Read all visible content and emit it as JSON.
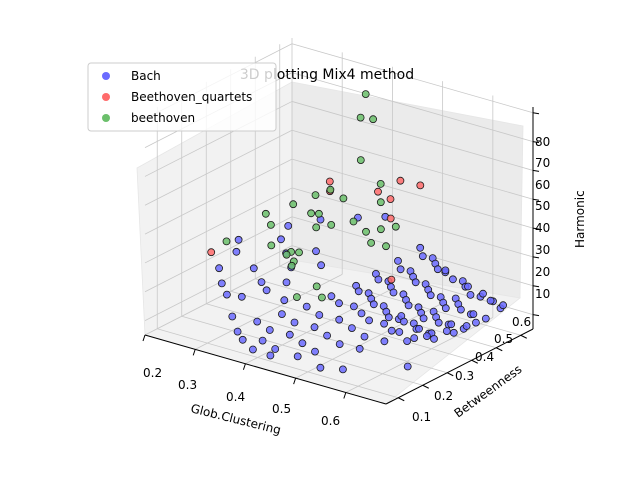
{
  "chart_data": {
    "type": "scatter",
    "title": "3D plotting Mix4 method",
    "xlabel": "Glob.Clustering",
    "ylabel": "Betweenness",
    "zlabel": "Harmonic",
    "xlim": [
      0.2,
      0.68
    ],
    "ylim": [
      0.05,
      0.65
    ],
    "zlim": [
      5,
      82
    ],
    "xticks": [
      "0.2",
      "0.3",
      "0.4",
      "0.5",
      "0.6"
    ],
    "yticks": [
      "0.1",
      "0.2",
      "0.3",
      "0.4",
      "0.5",
      "0.6"
    ],
    "zticks": [
      "10",
      "20",
      "30",
      "40",
      "50",
      "60",
      "70",
      "80"
    ],
    "grid": true,
    "legend_position": "top-left",
    "series": [
      {
        "name": "Bach",
        "color": "#6b6bff",
        "points": [
          [
            0.47,
            0.62,
            24
          ],
          [
            0.48,
            0.61,
            22
          ],
          [
            0.49,
            0.63,
            21
          ],
          [
            0.5,
            0.62,
            20
          ],
          [
            0.51,
            0.61,
            19
          ],
          [
            0.52,
            0.62,
            18
          ],
          [
            0.53,
            0.6,
            20
          ],
          [
            0.54,
            0.61,
            17
          ],
          [
            0.55,
            0.63,
            16
          ],
          [
            0.56,
            0.62,
            15
          ],
          [
            0.57,
            0.61,
            16
          ],
          [
            0.58,
            0.6,
            14
          ],
          [
            0.59,
            0.62,
            13
          ],
          [
            0.6,
            0.61,
            15
          ],
          [
            0.61,
            0.63,
            12
          ],
          [
            0.62,
            0.6,
            14
          ],
          [
            0.63,
            0.62,
            11
          ],
          [
            0.64,
            0.61,
            13
          ],
          [
            0.46,
            0.55,
            22
          ],
          [
            0.47,
            0.54,
            20
          ],
          [
            0.48,
            0.56,
            19
          ],
          [
            0.49,
            0.55,
            18
          ],
          [
            0.5,
            0.54,
            17
          ],
          [
            0.51,
            0.56,
            16
          ],
          [
            0.52,
            0.55,
            15
          ],
          [
            0.53,
            0.54,
            14
          ],
          [
            0.54,
            0.56,
            13
          ],
          [
            0.55,
            0.55,
            12
          ],
          [
            0.56,
            0.54,
            11
          ],
          [
            0.57,
            0.56,
            14
          ],
          [
            0.58,
            0.55,
            13
          ],
          [
            0.59,
            0.54,
            12
          ],
          [
            0.6,
            0.56,
            10
          ],
          [
            0.61,
            0.55,
            11
          ],
          [
            0.62,
            0.54,
            9
          ],
          [
            0.63,
            0.56,
            10
          ],
          [
            0.45,
            0.48,
            20
          ],
          [
            0.46,
            0.47,
            19
          ],
          [
            0.47,
            0.49,
            18
          ],
          [
            0.48,
            0.48,
            17
          ],
          [
            0.49,
            0.47,
            16
          ],
          [
            0.5,
            0.49,
            15
          ],
          [
            0.51,
            0.48,
            14
          ],
          [
            0.52,
            0.47,
            13
          ],
          [
            0.53,
            0.49,
            12
          ],
          [
            0.54,
            0.48,
            11
          ],
          [
            0.55,
            0.47,
            10
          ],
          [
            0.56,
            0.49,
            12
          ],
          [
            0.57,
            0.48,
            11
          ],
          [
            0.58,
            0.47,
            10
          ],
          [
            0.59,
            0.49,
            9
          ],
          [
            0.6,
            0.48,
            10
          ],
          [
            0.61,
            0.47,
            8
          ],
          [
            0.62,
            0.49,
            9
          ],
          [
            0.44,
            0.42,
            18
          ],
          [
            0.45,
            0.41,
            17
          ],
          [
            0.46,
            0.43,
            16
          ],
          [
            0.47,
            0.42,
            15
          ],
          [
            0.48,
            0.41,
            14
          ],
          [
            0.49,
            0.43,
            13
          ],
          [
            0.5,
            0.42,
            12
          ],
          [
            0.51,
            0.41,
            11
          ],
          [
            0.52,
            0.43,
            10
          ],
          [
            0.53,
            0.42,
            12
          ],
          [
            0.54,
            0.41,
            11
          ],
          [
            0.55,
            0.43,
            10
          ],
          [
            0.56,
            0.42,
            9
          ],
          [
            0.57,
            0.41,
            10
          ],
          [
            0.58,
            0.43,
            8
          ],
          [
            0.59,
            0.42,
            9
          ],
          [
            0.6,
            0.41,
            8
          ],
          [
            0.42,
            0.36,
            16
          ],
          [
            0.44,
            0.35,
            15
          ],
          [
            0.46,
            0.37,
            14
          ],
          [
            0.48,
            0.36,
            13
          ],
          [
            0.5,
            0.35,
            12
          ],
          [
            0.52,
            0.37,
            11
          ],
          [
            0.54,
            0.36,
            10
          ],
          [
            0.56,
            0.35,
            11
          ],
          [
            0.58,
            0.37,
            9
          ],
          [
            0.4,
            0.3,
            14
          ],
          [
            0.43,
            0.29,
            13
          ],
          [
            0.46,
            0.31,
            12
          ],
          [
            0.49,
            0.3,
            11
          ],
          [
            0.52,
            0.29,
            10
          ],
          [
            0.55,
            0.31,
            9
          ],
          [
            0.38,
            0.24,
            13
          ],
          [
            0.41,
            0.23,
            12
          ],
          [
            0.44,
            0.25,
            11
          ],
          [
            0.47,
            0.24,
            10
          ],
          [
            0.5,
            0.23,
            9
          ],
          [
            0.53,
            0.25,
            8
          ],
          [
            0.36,
            0.18,
            12
          ],
          [
            0.39,
            0.17,
            11
          ],
          [
            0.42,
            0.19,
            10
          ],
          [
            0.45,
            0.18,
            9
          ],
          [
            0.48,
            0.17,
            8
          ],
          [
            0.4,
            0.12,
            10
          ],
          [
            0.43,
            0.11,
            9
          ],
          [
            0.47,
            0.12,
            8
          ],
          [
            0.52,
            0.11,
            7
          ],
          [
            0.56,
            0.12,
            8
          ],
          [
            0.3,
            0.4,
            28
          ],
          [
            0.32,
            0.38,
            25
          ],
          [
            0.34,
            0.36,
            22
          ],
          [
            0.36,
            0.42,
            26
          ],
          [
            0.38,
            0.4,
            23
          ],
          [
            0.28,
            0.33,
            20
          ],
          [
            0.31,
            0.3,
            18
          ],
          [
            0.33,
            0.28,
            17
          ],
          [
            0.35,
            0.32,
            19
          ],
          [
            0.37,
            0.27,
            16
          ],
          [
            0.25,
            0.25,
            22
          ],
          [
            0.27,
            0.22,
            19
          ],
          [
            0.29,
            0.2,
            17
          ],
          [
            0.26,
            0.3,
            26
          ],
          [
            0.3,
            0.24,
            15
          ],
          [
            0.33,
            0.14,
            14
          ],
          [
            0.36,
            0.1,
            12
          ],
          [
            0.38,
            0.08,
            11
          ],
          [
            0.41,
            0.06,
            10
          ],
          [
            0.44,
            0.07,
            9
          ],
          [
            0.24,
            0.35,
            27
          ],
          [
            0.29,
            0.45,
            30
          ],
          [
            0.33,
            0.5,
            32
          ],
          [
            0.38,
            0.55,
            33
          ],
          [
            0.42,
            0.58,
            34
          ],
          [
            0.6,
            0.3,
            12
          ],
          [
            0.62,
            0.34,
            13
          ],
          [
            0.64,
            0.38,
            14
          ],
          [
            0.66,
            0.42,
            15
          ],
          [
            0.65,
            0.2,
            10
          ]
        ]
      },
      {
        "name": "Beethoven_quartets",
        "color": "#ff6b6b",
        "points": [
          [
            0.2,
            0.32,
            22
          ],
          [
            0.29,
            0.62,
            38
          ],
          [
            0.3,
            0.6,
            36
          ],
          [
            0.42,
            0.55,
            44
          ],
          [
            0.44,
            0.56,
            42
          ],
          [
            0.46,
            0.52,
            38
          ],
          [
            0.52,
            0.4,
            25
          ],
          [
            0.48,
            0.6,
            47
          ],
          [
            0.45,
            0.58,
            48
          ]
        ]
      },
      {
        "name": "beethoven",
        "color": "#6bbf6b",
        "points": [
          [
            0.42,
            0.5,
            80
          ],
          [
            0.4,
            0.52,
            70
          ],
          [
            0.42,
            0.53,
            70
          ],
          [
            0.42,
            0.48,
            58
          ],
          [
            0.4,
            0.35,
            44
          ],
          [
            0.4,
            0.45,
            45
          ],
          [
            0.44,
            0.52,
            49
          ],
          [
            0.45,
            0.5,
            44
          ],
          [
            0.4,
            0.4,
            38
          ],
          [
            0.42,
            0.45,
            38
          ],
          [
            0.38,
            0.38,
            37
          ],
          [
            0.36,
            0.4,
            40
          ],
          [
            0.3,
            0.45,
            38
          ],
          [
            0.32,
            0.5,
            40
          ],
          [
            0.34,
            0.52,
            42
          ],
          [
            0.44,
            0.46,
            35
          ],
          [
            0.46,
            0.48,
            36
          ],
          [
            0.48,
            0.5,
            37
          ],
          [
            0.28,
            0.4,
            32
          ],
          [
            0.26,
            0.42,
            34
          ],
          [
            0.36,
            0.3,
            30
          ],
          [
            0.38,
            0.28,
            28
          ],
          [
            0.42,
            0.3,
            22
          ],
          [
            0.44,
            0.28,
            20
          ],
          [
            0.4,
            0.26,
            19
          ],
          [
            0.33,
            0.38,
            26
          ],
          [
            0.35,
            0.35,
            25
          ],
          [
            0.37,
            0.33,
            30
          ],
          [
            0.46,
            0.44,
            33
          ],
          [
            0.48,
            0.46,
            32
          ],
          [
            0.25,
            0.28,
            30
          ],
          [
            0.31,
            0.34,
            29
          ]
        ]
      }
    ]
  }
}
